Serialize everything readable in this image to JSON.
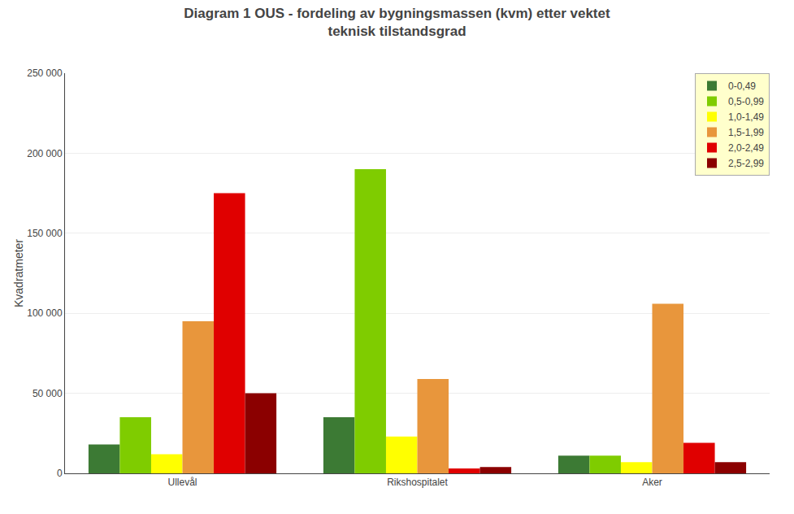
{
  "chart_data": {
    "type": "bar",
    "title": "Diagram 1 OUS - fordeling av bygningsmassen (kvm) etter vektet\nteknisk tilstandsgrad",
    "ylabel": "Kvadratmeter",
    "categories": [
      "Ullevål",
      "Rikshospitalet",
      "Aker"
    ],
    "series": [
      {
        "name": "0-0,49",
        "color": "#3c7a34",
        "values": [
          18000,
          35000,
          11000
        ]
      },
      {
        "name": "0,5-0,99",
        "color": "#7fcc00",
        "values": [
          35000,
          190000,
          11000
        ]
      },
      {
        "name": "1,0-1,49",
        "color": "#ffff00",
        "values": [
          12000,
          23000,
          7000
        ]
      },
      {
        "name": "1,5-1,99",
        "color": "#e8963c",
        "values": [
          95000,
          59000,
          106000
        ]
      },
      {
        "name": "2,0-2,49",
        "color": "#e00000",
        "values": [
          175000,
          3000,
          19000
        ]
      },
      {
        "name": "2,5-2,99",
        "color": "#8b0000",
        "values": [
          50000,
          4000,
          7000
        ]
      }
    ],
    "ylim": [
      0,
      250000
    ],
    "yticks": [
      0,
      {
        "value": 50000,
        "label": "50 000"
      },
      {
        "value": 100000,
        "label": "100 000"
      },
      {
        "value": 150000,
        "label": "150 000"
      },
      {
        "value": 200000,
        "label": "200 000"
      },
      {
        "value": 250000,
        "label": "250 000"
      }
    ],
    "grid": true,
    "legend": "upper right"
  }
}
